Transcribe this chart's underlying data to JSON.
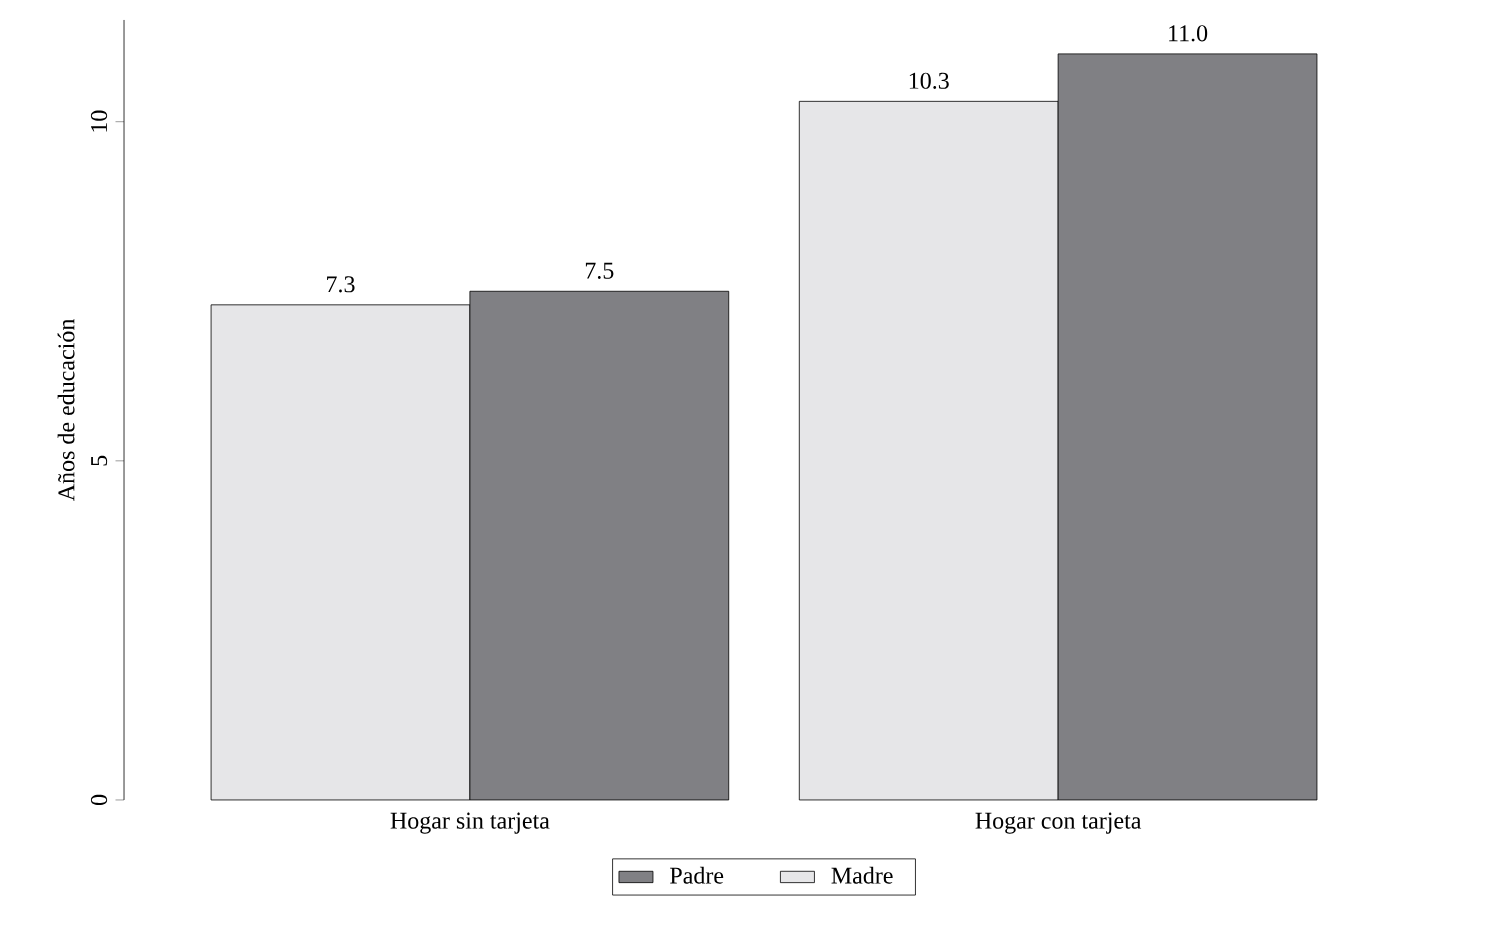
{
  "chart_data": {
    "type": "bar",
    "ylabel": "Años de educación",
    "categories": [
      "Hogar sin tarjeta",
      "Hogar con tarjeta"
    ],
    "series": [
      {
        "name": "Madre",
        "color": "#e6e6e8",
        "values": [
          7.3,
          10.3
        ],
        "value_labels": [
          "7.3",
          "10.3"
        ]
      },
      {
        "name": "Padre",
        "color": "#808084",
        "values": [
          7.5,
          11.0
        ],
        "value_labels": [
          "7.5",
          "11.0"
        ]
      }
    ],
    "ylim": [
      0,
      11.5
    ],
    "yticks": [
      0,
      5,
      10
    ],
    "legend": "bottom",
    "grid": false
  }
}
